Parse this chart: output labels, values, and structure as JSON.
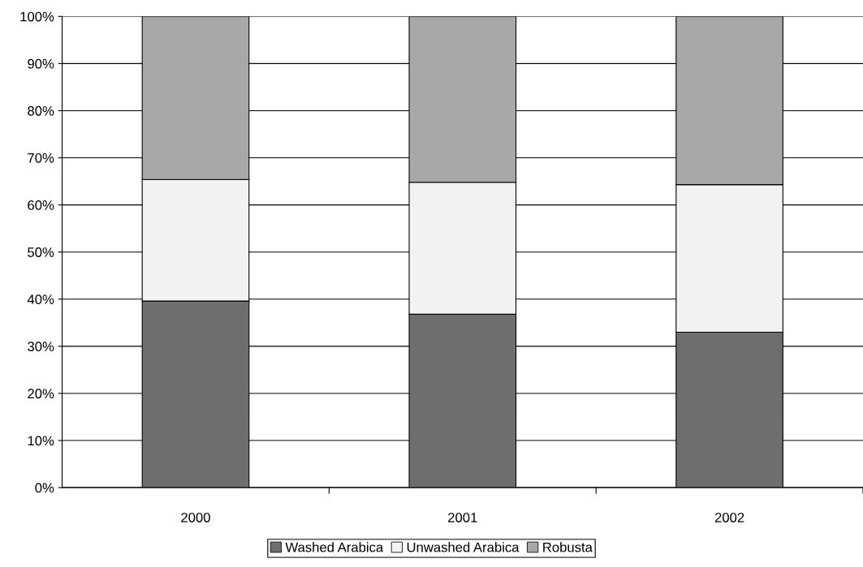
{
  "chart_data": {
    "type": "bar",
    "stacked": true,
    "categories": [
      "2000",
      "2001",
      "2002"
    ],
    "series": [
      {
        "name": "Washed Arabica",
        "color": "#6e6e6e",
        "values": [
          39.6,
          36.8,
          33.0
        ]
      },
      {
        "name": "Unwashed Arabica",
        "color": "#f2f2f2",
        "values": [
          25.8,
          28.0,
          31.3
        ]
      },
      {
        "name": "Robusta",
        "color": "#a8a8a8",
        "values": [
          34.6,
          35.2,
          35.7
        ]
      }
    ],
    "ylim": [
      0,
      100
    ],
    "yticks": [
      {
        "value": 0,
        "label": "0%"
      },
      {
        "value": 10,
        "label": "10%"
      },
      {
        "value": 20,
        "label": "20%"
      },
      {
        "value": 30,
        "label": "30%"
      },
      {
        "value": 40,
        "label": "40%"
      },
      {
        "value": 50,
        "label": "50%"
      },
      {
        "value": 60,
        "label": "60%"
      },
      {
        "value": 70,
        "label": "70%"
      },
      {
        "value": 80,
        "label": "80%"
      },
      {
        "value": 90,
        "label": "90%"
      },
      {
        "value": 100,
        "label": "100%"
      }
    ],
    "grid": "y",
    "legend": "bottom"
  }
}
